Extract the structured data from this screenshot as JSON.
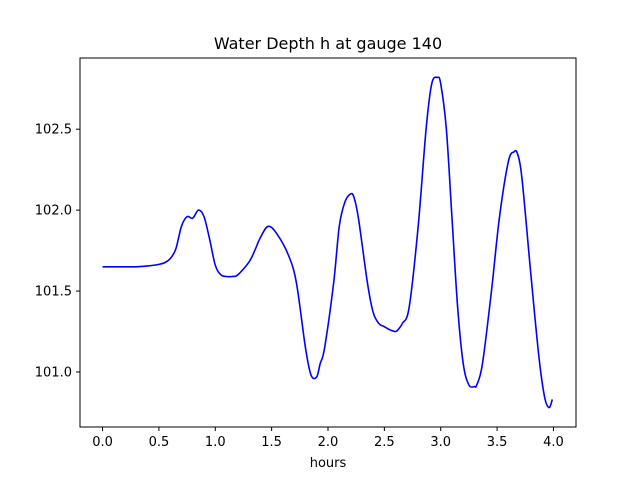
{
  "chart_data": {
    "type": "line",
    "title": "Water Depth h at gauge 140",
    "xlabel": "hours",
    "ylabel": "",
    "xlim": [
      -0.2,
      4.2
    ],
    "ylim": [
      100.66,
      102.94
    ],
    "xticks": [
      {
        "value": 0.0,
        "label": "0.0"
      },
      {
        "value": 0.5,
        "label": "0.5"
      },
      {
        "value": 1.0,
        "label": "1.0"
      },
      {
        "value": 1.5,
        "label": "1.5"
      },
      {
        "value": 2.0,
        "label": "2.0"
      },
      {
        "value": 2.5,
        "label": "2.5"
      },
      {
        "value": 3.0,
        "label": "3.0"
      },
      {
        "value": 3.5,
        "label": "3.5"
      },
      {
        "value": 4.0,
        "label": "4.0"
      }
    ],
    "yticks": [
      {
        "value": 101.0,
        "label": "101.0"
      },
      {
        "value": 101.5,
        "label": "101.5"
      },
      {
        "value": 102.0,
        "label": "102.0"
      },
      {
        "value": 102.5,
        "label": "102.5"
      }
    ],
    "grid": false,
    "series": [
      {
        "color": "#0000ff",
        "x": [
          0.0,
          0.1,
          0.2,
          0.3,
          0.4,
          0.5,
          0.55,
          0.6,
          0.65,
          0.7,
          0.75,
          0.8,
          0.85,
          0.9,
          0.95,
          1.0,
          1.05,
          1.1,
          1.15,
          1.2,
          1.3,
          1.35,
          1.4,
          1.47,
          1.55,
          1.65,
          1.72,
          1.8,
          1.85,
          1.9,
          1.93,
          1.97,
          2.05,
          2.1,
          2.15,
          2.2,
          2.23,
          2.27,
          2.35,
          2.4,
          2.45,
          2.5,
          2.55,
          2.6,
          2.62,
          2.66,
          2.72,
          2.8,
          2.87,
          2.92,
          2.97,
          3.0,
          3.05,
          3.1,
          3.15,
          3.2,
          3.25,
          3.3,
          3.32,
          3.37,
          3.45,
          3.52,
          3.6,
          3.65,
          3.68,
          3.72,
          3.8,
          3.87,
          3.92,
          3.96,
          3.99
        ],
        "y": [
          101.65,
          101.65,
          101.65,
          101.65,
          101.655,
          101.665,
          101.675,
          101.7,
          101.76,
          101.9,
          101.96,
          101.95,
          102.0,
          101.96,
          101.82,
          101.66,
          101.6,
          101.59,
          101.59,
          101.6,
          101.68,
          101.75,
          101.83,
          101.9,
          101.85,
          101.72,
          101.55,
          101.15,
          100.98,
          100.97,
          101.05,
          101.15,
          101.55,
          101.9,
          102.05,
          102.1,
          102.08,
          101.95,
          101.55,
          101.37,
          101.3,
          101.28,
          101.26,
          101.25,
          101.26,
          101.3,
          101.4,
          101.9,
          102.5,
          102.78,
          102.82,
          102.78,
          102.5,
          101.95,
          101.4,
          101.05,
          100.92,
          100.91,
          100.92,
          101.05,
          101.5,
          101.95,
          102.3,
          102.36,
          102.35,
          102.2,
          101.6,
          101.1,
          100.85,
          100.78,
          100.83
        ]
      }
    ]
  }
}
